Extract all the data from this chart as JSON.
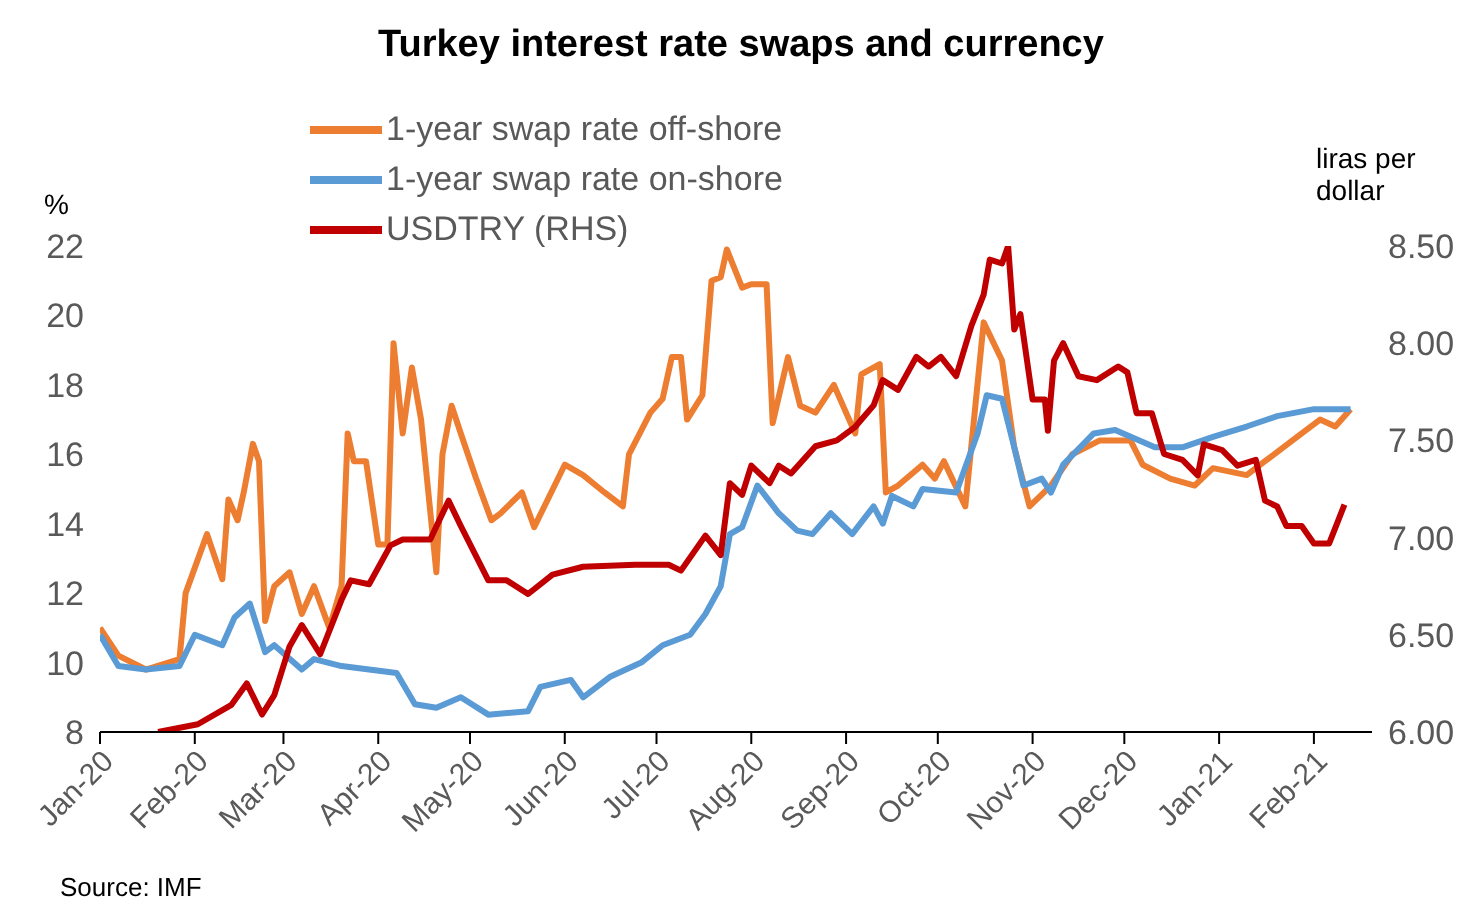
{
  "chart_data": {
    "type": "line",
    "title": "Turkey interest rate swaps and currency",
    "ylabel": "%",
    "y2label": "liras per dollar",
    "annotations": [
      "Source: IMF"
    ],
    "legend": "top",
    "grid": false,
    "xlim": [
      "2020-01-01",
      "2021-02-20"
    ],
    "xticks": [
      {
        "value": "2020-01-01",
        "label": "Jan-20"
      },
      {
        "value": "2020-02-01",
        "label": "Feb-20"
      },
      {
        "value": "2020-03-01",
        "label": "Mar-20"
      },
      {
        "value": "2020-04-01",
        "label": "Apr-20"
      },
      {
        "value": "2020-05-01",
        "label": "May-20"
      },
      {
        "value": "2020-06-01",
        "label": "Jun-20"
      },
      {
        "value": "2020-07-01",
        "label": "Jul-20"
      },
      {
        "value": "2020-08-01",
        "label": "Aug-20"
      },
      {
        "value": "2020-09-01",
        "label": "Sep-20"
      },
      {
        "value": "2020-10-01",
        "label": "Oct-20"
      },
      {
        "value": "2020-11-01",
        "label": "Nov-20"
      },
      {
        "value": "2020-12-01",
        "label": "Dec-20"
      },
      {
        "value": "2021-01-01",
        "label": "Jan-21"
      },
      {
        "value": "2021-02-01",
        "label": "Feb-21"
      }
    ],
    "ylim": [
      8,
      22
    ],
    "yticks": [
      8,
      10,
      12,
      14,
      16,
      18,
      20,
      22
    ],
    "y2lim": [
      6,
      8.5
    ],
    "y2ticks": [
      {
        "value": 6,
        "label": "6.00"
      },
      {
        "value": 6.5,
        "label": "6.50"
      },
      {
        "value": 7,
        "label": "7.00"
      },
      {
        "value": 7.5,
        "label": "7.50"
      },
      {
        "value": 8,
        "label": "8.00"
      },
      {
        "value": 8.5,
        "label": "8.50"
      }
    ],
    "series": [
      {
        "name": "1-year swap rate off-shore",
        "color": "#ed7d31",
        "x": [
          "2020-01-01",
          "2020-01-07",
          "2020-01-16",
          "2020-01-27",
          "2020-01-29",
          "2020-02-05",
          "2020-02-10",
          "2020-02-12",
          "2020-02-15",
          "2020-02-17",
          "2020-02-20",
          "2020-02-22",
          "2020-02-24",
          "2020-02-27",
          "2020-03-03",
          "2020-03-07",
          "2020-03-11",
          "2020-03-16",
          "2020-03-20",
          "2020-03-22",
          "2020-03-24",
          "2020-03-28",
          "2020-04-01",
          "2020-04-04",
          "2020-04-06",
          "2020-04-09",
          "2020-04-12",
          "2020-04-15",
          "2020-04-20",
          "2020-04-22",
          "2020-04-25",
          "2020-04-28",
          "2020-05-03",
          "2020-05-08",
          "2020-05-11",
          "2020-05-18",
          "2020-05-22",
          "2020-06-01",
          "2020-06-07",
          "2020-06-14",
          "2020-06-20",
          "2020-06-22",
          "2020-06-29",
          "2020-07-03",
          "2020-07-06",
          "2020-07-09",
          "2020-07-11",
          "2020-07-16",
          "2020-07-19",
          "2020-07-22",
          "2020-07-24",
          "2020-07-29",
          "2020-08-01",
          "2020-08-06",
          "2020-08-08",
          "2020-08-13",
          "2020-08-17",
          "2020-08-22",
          "2020-08-28",
          "2020-09-04",
          "2020-09-06",
          "2020-09-12",
          "2020-09-14",
          "2020-09-18",
          "2020-09-26",
          "2020-09-30",
          "2020-10-03",
          "2020-10-10",
          "2020-10-16",
          "2020-10-22",
          "2020-10-26",
          "2020-10-31",
          "2020-11-07",
          "2020-11-14",
          "2020-11-23",
          "2020-12-03",
          "2020-12-07",
          "2020-12-16",
          "2020-12-24",
          "2020-12-30",
          "2021-01-10",
          "2021-01-16",
          "2021-01-25",
          "2021-02-03",
          "2021-02-08",
          "2021-02-13"
        ],
        "values": [
          11.0,
          10.2,
          9.8,
          10.1,
          12.0,
          13.7,
          12.4,
          14.7,
          14.1,
          14.9,
          16.3,
          15.8,
          11.2,
          12.2,
          12.6,
          11.4,
          12.2,
          11.0,
          12.2,
          16.6,
          15.8,
          15.8,
          13.4,
          13.4,
          19.2,
          16.6,
          18.5,
          17.0,
          12.6,
          16.0,
          17.4,
          16.6,
          15.3,
          14.1,
          14.3,
          14.9,
          13.9,
          15.7,
          15.4,
          14.9,
          14.5,
          16.0,
          17.2,
          17.6,
          18.8,
          18.8,
          17.0,
          17.7,
          21.0,
          21.1,
          21.9,
          20.8,
          20.9,
          20.9,
          16.9,
          18.8,
          17.4,
          17.2,
          18.0,
          16.6,
          18.3,
          18.6,
          14.9,
          15.1,
          15.7,
          15.3,
          15.8,
          14.5,
          19.8,
          18.7,
          16.2,
          14.5,
          15.1,
          16.0,
          16.4,
          16.4,
          15.7,
          15.3,
          15.1,
          15.6,
          15.4,
          15.8,
          16.4,
          17.0,
          16.8,
          17.3
        ]
      },
      {
        "name": "1-year swap rate on-shore",
        "color": "#5b9bd5",
        "x": [
          "2020-01-01",
          "2020-01-07",
          "2020-01-16",
          "2020-01-27",
          "2020-02-01",
          "2020-02-10",
          "2020-02-14",
          "2020-02-19",
          "2020-02-24",
          "2020-02-27",
          "2020-03-07",
          "2020-03-11",
          "2020-03-20",
          "2020-03-29",
          "2020-04-07",
          "2020-04-13",
          "2020-04-20",
          "2020-04-28",
          "2020-05-07",
          "2020-05-20",
          "2020-05-24",
          "2020-06-03",
          "2020-06-07",
          "2020-06-16",
          "2020-06-26",
          "2020-07-03",
          "2020-07-12",
          "2020-07-17",
          "2020-07-22",
          "2020-07-25",
          "2020-07-29",
          "2020-08-03",
          "2020-08-10",
          "2020-08-16",
          "2020-08-21",
          "2020-08-27",
          "2020-09-03",
          "2020-09-10",
          "2020-09-13",
          "2020-09-16",
          "2020-09-23",
          "2020-09-26",
          "2020-10-07",
          "2020-10-14",
          "2020-10-17",
          "2020-10-22",
          "2020-10-26",
          "2020-10-29",
          "2020-11-04",
          "2020-11-07",
          "2020-11-11",
          "2020-11-21",
          "2020-11-28",
          "2020-12-11",
          "2020-12-20",
          "2020-12-30",
          "2021-01-10",
          "2021-01-20",
          "2021-02-01",
          "2021-02-13"
        ],
        "values": [
          10.8,
          9.9,
          9.8,
          9.9,
          10.8,
          10.5,
          11.3,
          11.7,
          10.3,
          10.5,
          9.8,
          10.1,
          9.9,
          9.8,
          9.7,
          8.8,
          8.7,
          9.0,
          8.5,
          8.6,
          9.3,
          9.5,
          9.0,
          9.6,
          10.0,
          10.5,
          10.8,
          11.4,
          12.2,
          13.7,
          13.9,
          15.1,
          14.3,
          13.8,
          13.7,
          14.3,
          13.7,
          14.5,
          14.0,
          14.8,
          14.5,
          15.0,
          14.9,
          16.6,
          17.7,
          17.6,
          16.2,
          15.1,
          15.3,
          14.9,
          15.7,
          16.6,
          16.7,
          16.2,
          16.2,
          16.5,
          16.8,
          17.1,
          17.3,
          17.3
        ]
      },
      {
        "name": "USDTRY (RHS)",
        "color": "#c00000",
        "axis": "y2",
        "x": [
          "2020-01-20",
          "2020-02-02",
          "2020-02-13",
          "2020-02-18",
          "2020-02-23",
          "2020-02-27",
          "2020-03-03",
          "2020-03-07",
          "2020-03-13",
          "2020-03-20",
          "2020-03-23",
          "2020-03-29",
          "2020-04-05",
          "2020-04-09",
          "2020-04-18",
          "2020-04-24",
          "2020-04-28",
          "2020-05-07",
          "2020-05-13",
          "2020-05-20",
          "2020-05-28",
          "2020-06-07",
          "2020-06-24",
          "2020-07-05",
          "2020-07-09",
          "2020-07-17",
          "2020-07-22",
          "2020-07-25",
          "2020-07-29",
          "2020-08-01",
          "2020-08-07",
          "2020-08-10",
          "2020-08-14",
          "2020-08-22",
          "2020-08-29",
          "2020-09-04",
          "2020-09-10",
          "2020-09-13",
          "2020-09-18",
          "2020-09-24",
          "2020-09-28",
          "2020-10-02",
          "2020-10-07",
          "2020-10-12",
          "2020-10-16",
          "2020-10-18",
          "2020-10-22",
          "2020-10-24",
          "2020-10-26",
          "2020-10-28",
          "2020-11-01",
          "2020-11-05",
          "2020-11-06",
          "2020-11-08",
          "2020-11-11",
          "2020-11-16",
          "2020-11-22",
          "2020-11-29",
          "2020-12-02",
          "2020-12-05",
          "2020-12-10",
          "2020-12-14",
          "2020-12-20",
          "2020-12-25",
          "2020-12-27",
          "2021-01-02",
          "2021-01-07",
          "2021-01-13",
          "2021-01-16",
          "2021-01-20",
          "2021-01-23",
          "2021-01-28",
          "2021-02-01",
          "2021-02-06",
          "2021-02-09",
          "2021-02-11"
        ],
        "values": [
          6.0,
          6.04,
          6.14,
          6.25,
          6.09,
          6.19,
          6.44,
          6.55,
          6.4,
          6.68,
          6.78,
          6.76,
          6.96,
          6.99,
          6.99,
          7.19,
          7.06,
          6.78,
          6.78,
          6.71,
          6.81,
          6.85,
          6.86,
          6.86,
          6.83,
          7.01,
          6.91,
          7.28,
          7.22,
          7.37,
          7.28,
          7.37,
          7.33,
          7.47,
          7.5,
          7.57,
          7.68,
          7.81,
          7.76,
          7.93,
          7.88,
          7.93,
          7.83,
          8.09,
          8.25,
          8.43,
          8.41,
          8.5,
          8.07,
          8.15,
          7.71,
          7.71,
          7.55,
          7.91,
          8.0,
          7.83,
          7.81,
          7.88,
          7.85,
          7.64,
          7.64,
          7.43,
          7.4,
          7.32,
          7.48,
          7.45,
          7.37,
          7.4,
          7.19,
          7.16,
          7.06,
          7.06,
          6.97,
          6.97,
          7.09,
          7.17
        ]
      }
    ]
  }
}
